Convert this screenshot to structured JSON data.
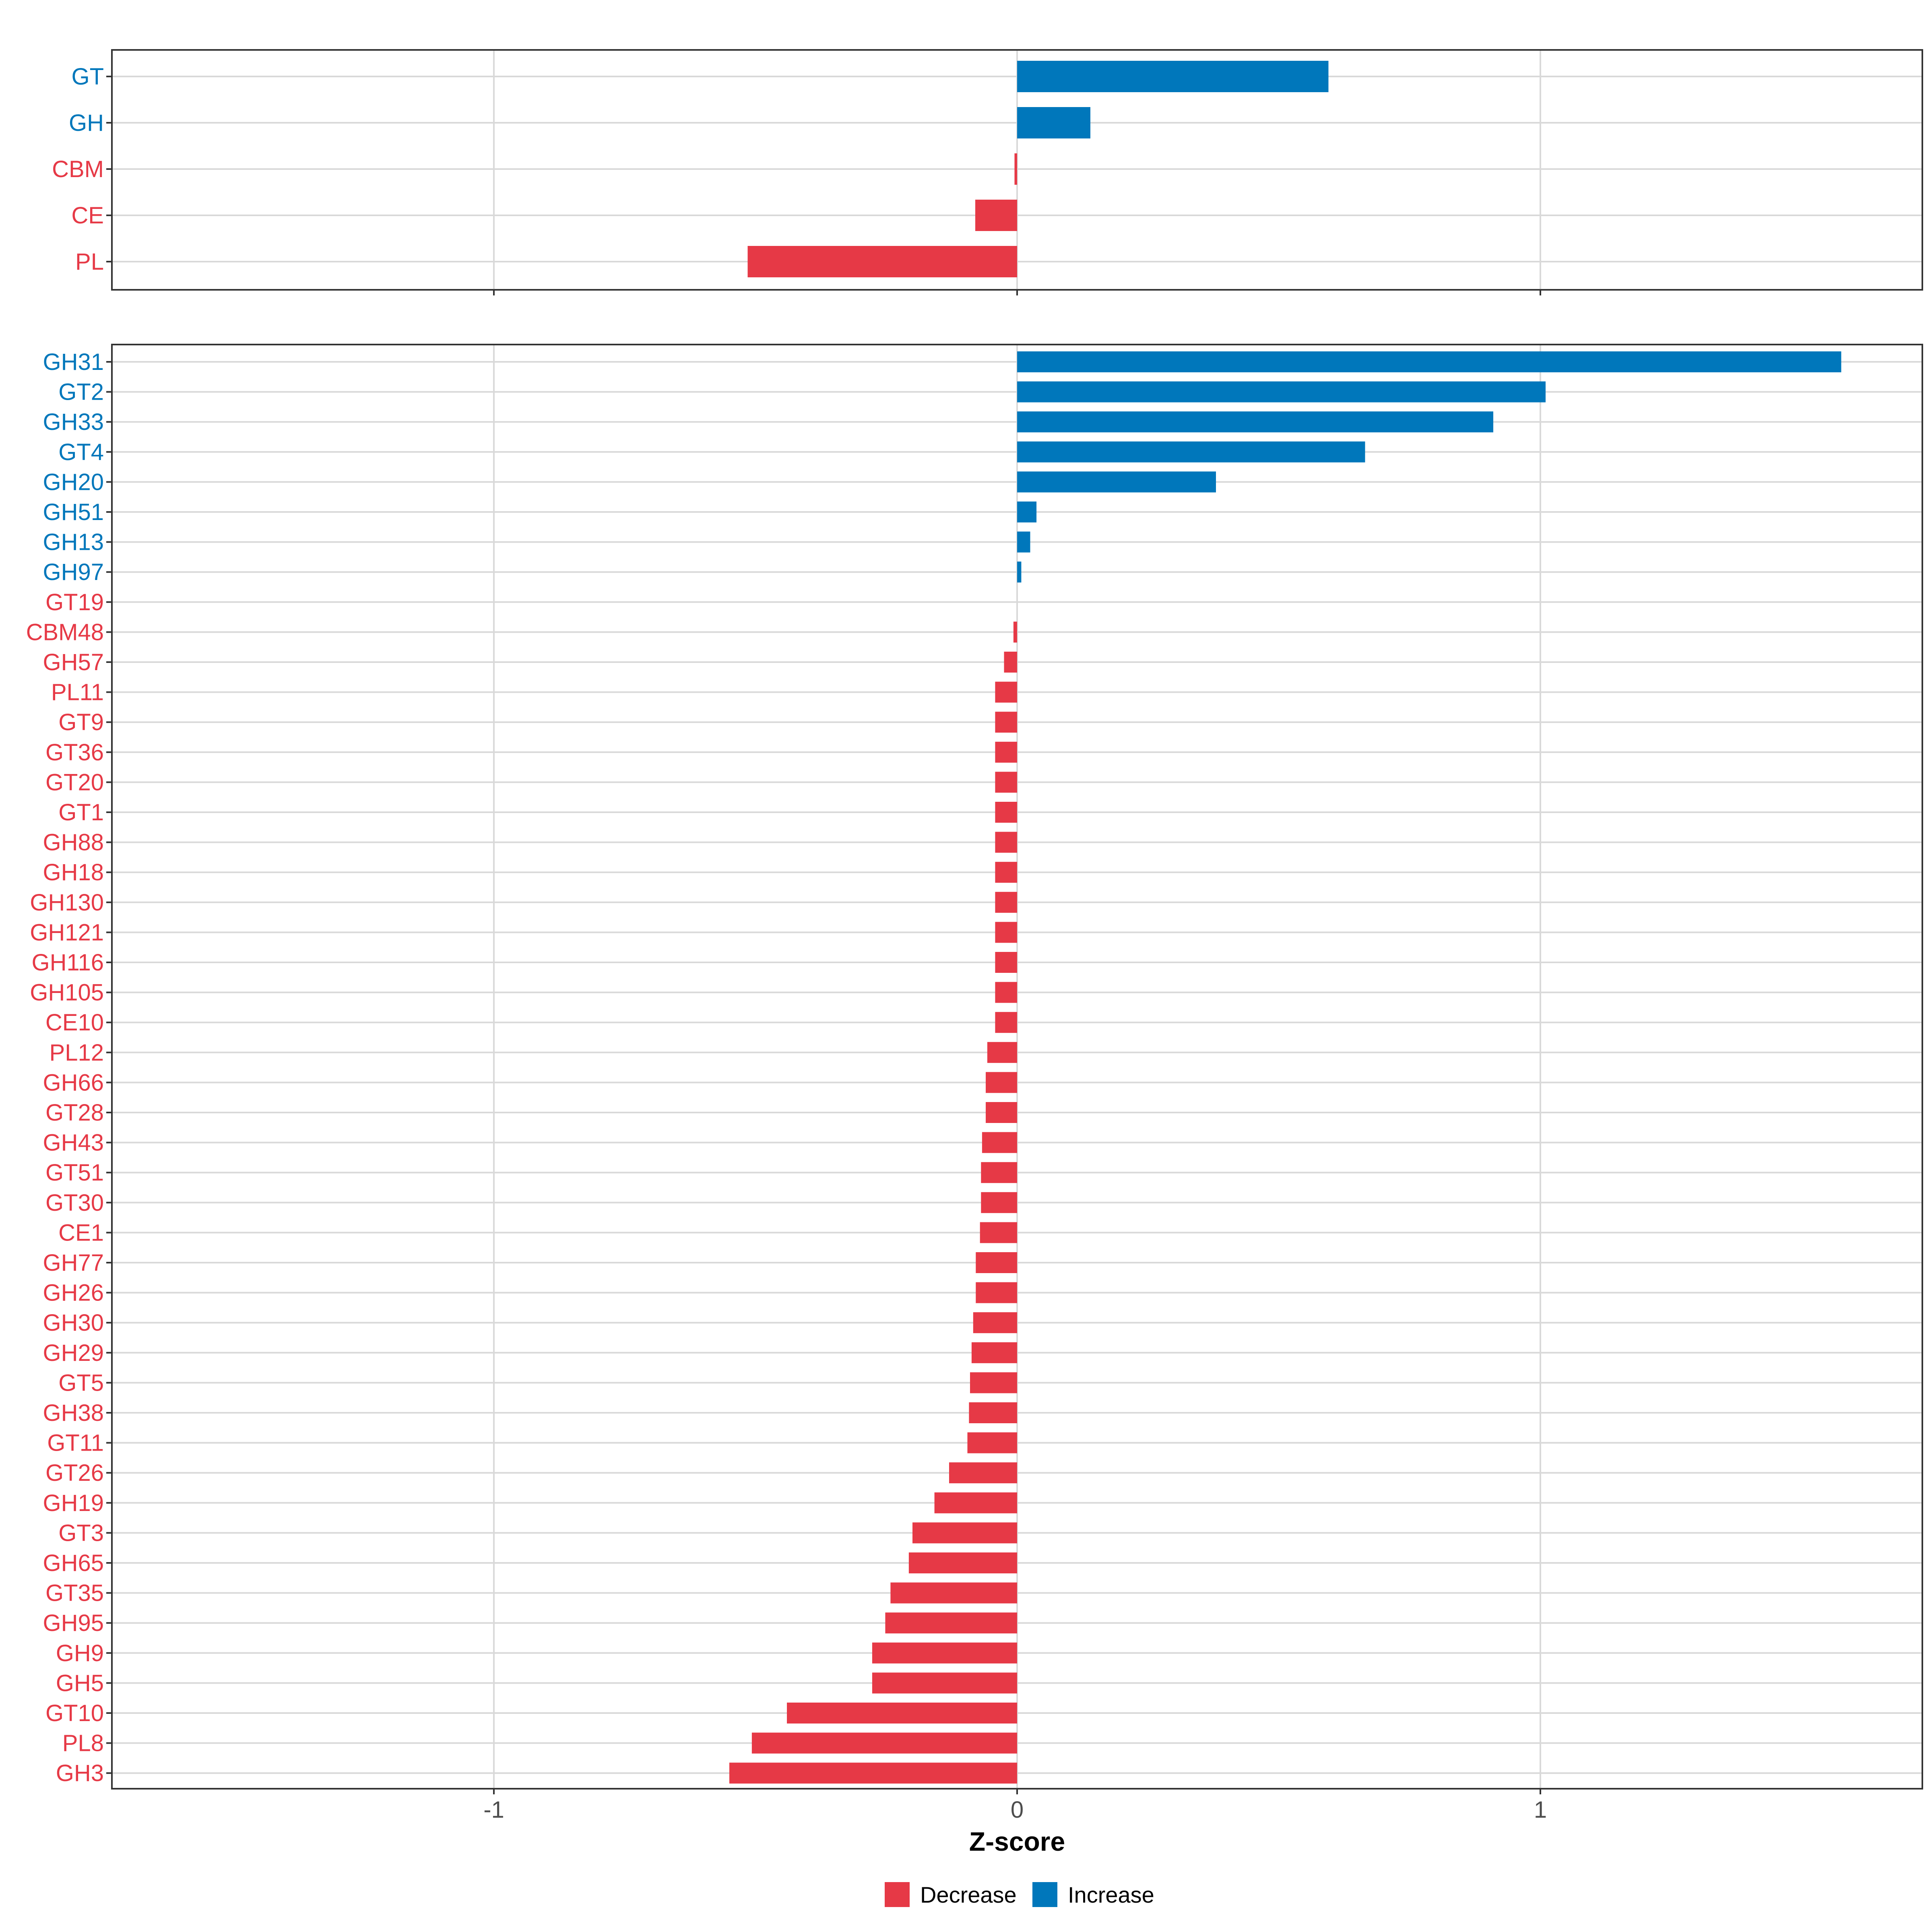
{
  "colors": {
    "decrease": "#E63946",
    "increase": "#0077BB",
    "grid": "#D9D9D9",
    "frame": "#333333",
    "tick_text": "#4D4D4D",
    "axis_title": "#000000"
  },
  "chart_data": [
    {
      "type": "bar",
      "orientation": "horizontal",
      "panel": "top",
      "categories": [
        "GT",
        "GH",
        "CBM",
        "CE",
        "PL"
      ],
      "values": [
        0.595,
        0.14,
        -0.005,
        -0.08,
        -0.515
      ],
      "groups": [
        "Increase",
        "Increase",
        "Decrease",
        "Decrease",
        "Decrease"
      ],
      "xlim": [
        -1.73,
        1.73
      ],
      "xticks": [
        -1,
        0,
        1
      ],
      "show_tick_labels": false
    },
    {
      "type": "bar",
      "orientation": "horizontal",
      "panel": "bottom",
      "categories": [
        "GH31",
        "GT2",
        "GH33",
        "GT4",
        "GH20",
        "GH51",
        "GH13",
        "GH97",
        "GT19",
        "CBM48",
        "GH57",
        "PL11",
        "GT9",
        "GT36",
        "GT20",
        "GT1",
        "GH88",
        "GH18",
        "GH130",
        "GH121",
        "GH116",
        "GH105",
        "CE10",
        "PL12",
        "GH66",
        "GT28",
        "GH43",
        "GT51",
        "GT30",
        "CE1",
        "GH77",
        "GH26",
        "GH30",
        "GH29",
        "GT5",
        "GH38",
        "GT11",
        "GT26",
        "GH19",
        "GT3",
        "GH65",
        "GT35",
        "GH95",
        "GH9",
        "GH5",
        "GT10",
        "PL8",
        "GH3"
      ],
      "values": [
        1.575,
        1.01,
        0.91,
        0.665,
        0.38,
        0.037,
        0.025,
        0.008,
        0.0,
        -0.007,
        -0.025,
        -0.042,
        -0.042,
        -0.042,
        -0.042,
        -0.042,
        -0.042,
        -0.042,
        -0.042,
        -0.042,
        -0.042,
        -0.042,
        -0.042,
        -0.057,
        -0.06,
        -0.06,
        -0.067,
        -0.069,
        -0.069,
        -0.071,
        -0.079,
        -0.079,
        -0.084,
        -0.087,
        -0.09,
        -0.092,
        -0.095,
        -0.13,
        -0.158,
        -0.2,
        -0.207,
        -0.242,
        -0.252,
        -0.277,
        -0.277,
        -0.44,
        -0.507,
        -0.55
      ],
      "groups": [
        "Increase",
        "Increase",
        "Increase",
        "Increase",
        "Increase",
        "Increase",
        "Increase",
        "Increase",
        "Decrease",
        "Decrease",
        "Decrease",
        "Decrease",
        "Decrease",
        "Decrease",
        "Decrease",
        "Decrease",
        "Decrease",
        "Decrease",
        "Decrease",
        "Decrease",
        "Decrease",
        "Decrease",
        "Decrease",
        "Decrease",
        "Decrease",
        "Decrease",
        "Decrease",
        "Decrease",
        "Decrease",
        "Decrease",
        "Decrease",
        "Decrease",
        "Decrease",
        "Decrease",
        "Decrease",
        "Decrease",
        "Decrease",
        "Decrease",
        "Decrease",
        "Decrease",
        "Decrease",
        "Decrease",
        "Decrease",
        "Decrease",
        "Decrease",
        "Decrease",
        "Decrease",
        "Decrease"
      ],
      "xlim": [
        -1.73,
        1.73
      ],
      "xticks": [
        -1,
        0,
        1
      ],
      "xtick_labels": [
        "-1",
        "0",
        "1"
      ],
      "xlabel": "Z-score",
      "show_tick_labels": true
    }
  ],
  "legend": {
    "position": "bottom",
    "items": [
      {
        "label": "Decrease",
        "color_key": "decrease"
      },
      {
        "label": "Increase",
        "color_key": "increase"
      }
    ]
  }
}
